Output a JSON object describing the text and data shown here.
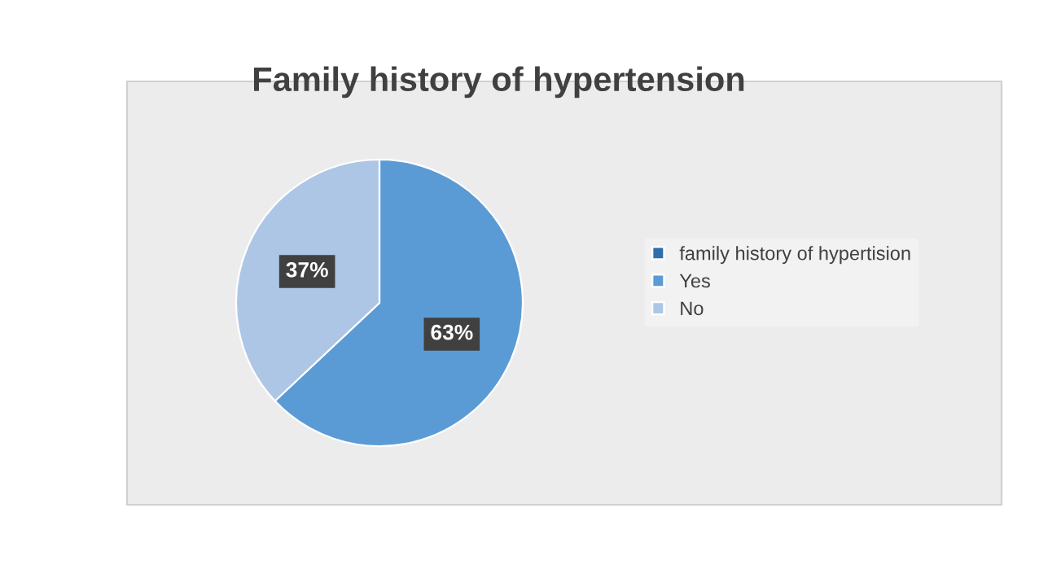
{
  "chart_data": {
    "type": "pie",
    "title": "Family history of hypertension",
    "categories": [
      "family history of hypertision",
      "Yes",
      "No"
    ],
    "values": [
      0,
      63,
      37
    ],
    "colors": [
      "#2f6eaa",
      "#5b9bd5",
      "#adc6e6"
    ],
    "value_labels": [
      null,
      "63%",
      "37%"
    ],
    "legend": "right"
  }
}
